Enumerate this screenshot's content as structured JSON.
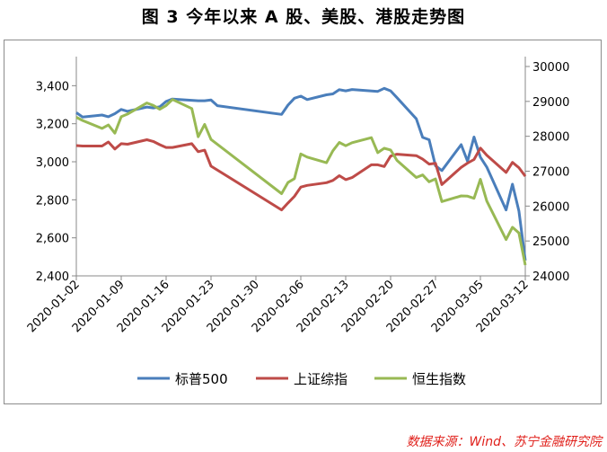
{
  "title": "图 3 今年以来 A 股、美股、港股走势图",
  "source": "数据来源：Wind、苏宁金融研究院",
  "colors": {
    "sp500": "#4a7ebb",
    "shanghai": "#be4b48",
    "hangseng": "#98b954"
  },
  "chart_data": {
    "type": "line",
    "x_tick_labels": [
      "2020-01-02",
      "2020-01-09",
      "2020-01-16",
      "2020-01-23",
      "2020-01-30",
      "2020-02-06",
      "2020-02-13",
      "2020-02-20",
      "2020-02-27",
      "2020-03-05",
      "2020-03-12"
    ],
    "left_axis": {
      "ylim": [
        2400,
        3500
      ],
      "ticks": [
        "2,400",
        "2,600",
        "2,800",
        "3,000",
        "3,200",
        "3,400"
      ],
      "tick_values": [
        2400,
        2600,
        2800,
        3000,
        3200,
        3400
      ]
    },
    "right_axis": {
      "ylim": [
        24000,
        30000
      ],
      "ticks": [
        "24000",
        "25000",
        "26000",
        "27000",
        "28000",
        "29000",
        "30000"
      ],
      "tick_values": [
        24000,
        25000,
        26000,
        27000,
        28000,
        29000,
        30000
      ]
    },
    "grid": false,
    "legend_position": "bottom",
    "series": [
      {
        "name": "标普500",
        "axis": "left",
        "color_key": "sp500",
        "points": [
          [
            "2020-01-02",
            3258
          ],
          [
            "2020-01-03",
            3235
          ],
          [
            "2020-01-06",
            3246
          ],
          [
            "2020-01-07",
            3237
          ],
          [
            "2020-01-08",
            3253
          ],
          [
            "2020-01-09",
            3275
          ],
          [
            "2020-01-10",
            3265
          ],
          [
            "2020-01-13",
            3288
          ],
          [
            "2020-01-14",
            3283
          ],
          [
            "2020-01-15",
            3289
          ],
          [
            "2020-01-16",
            3317
          ],
          [
            "2020-01-17",
            3330
          ],
          [
            "2020-01-21",
            3321
          ],
          [
            "2020-01-22",
            3321
          ],
          [
            "2020-01-23",
            3325
          ],
          [
            "2020-01-24",
            3295
          ],
          [
            "2020-02-03",
            3249
          ],
          [
            "2020-02-04",
            3298
          ],
          [
            "2020-02-05",
            3334
          ],
          [
            "2020-02-06",
            3345
          ],
          [
            "2020-02-07",
            3327
          ],
          [
            "2020-02-10",
            3352
          ],
          [
            "2020-02-11",
            3357
          ],
          [
            "2020-02-12",
            3379
          ],
          [
            "2020-02-13",
            3373
          ],
          [
            "2020-02-14",
            3380
          ],
          [
            "2020-02-18",
            3370
          ],
          [
            "2020-02-19",
            3386
          ],
          [
            "2020-02-20",
            3373
          ],
          [
            "2020-02-21",
            3337
          ],
          [
            "2020-02-24",
            3226
          ],
          [
            "2020-02-25",
            3128
          ],
          [
            "2020-02-26",
            3116
          ],
          [
            "2020-02-27",
            2979
          ],
          [
            "2020-02-28",
            2954
          ],
          [
            "2020-03-02",
            3090
          ],
          [
            "2020-03-03",
            3003
          ],
          [
            "2020-03-04",
            3130
          ],
          [
            "2020-03-05",
            3024
          ],
          [
            "2020-03-06",
            2972
          ],
          [
            "2020-03-09",
            2747
          ],
          [
            "2020-03-10",
            2882
          ],
          [
            "2020-03-11",
            2741
          ],
          [
            "2020-03-12",
            2481
          ]
        ]
      },
      {
        "name": "上证综指",
        "axis": "left",
        "color_key": "shanghai",
        "points": [
          [
            "2020-01-02",
            3085
          ],
          [
            "2020-01-03",
            3083
          ],
          [
            "2020-01-06",
            3083
          ],
          [
            "2020-01-07",
            3104
          ],
          [
            "2020-01-08",
            3067
          ],
          [
            "2020-01-09",
            3095
          ],
          [
            "2020-01-10",
            3092
          ],
          [
            "2020-01-13",
            3116
          ],
          [
            "2020-01-14",
            3107
          ],
          [
            "2020-01-15",
            3090
          ],
          [
            "2020-01-16",
            3075
          ],
          [
            "2020-01-17",
            3075
          ],
          [
            "2020-01-20",
            3095
          ],
          [
            "2020-01-21",
            3053
          ],
          [
            "2020-01-22",
            3061
          ],
          [
            "2020-01-23",
            2977
          ],
          [
            "2020-02-03",
            2747
          ],
          [
            "2020-02-04",
            2783
          ],
          [
            "2020-02-05",
            2818
          ],
          [
            "2020-02-06",
            2867
          ],
          [
            "2020-02-07",
            2876
          ],
          [
            "2020-02-10",
            2890
          ],
          [
            "2020-02-11",
            2902
          ],
          [
            "2020-02-12",
            2927
          ],
          [
            "2020-02-13",
            2906
          ],
          [
            "2020-02-14",
            2917
          ],
          [
            "2020-02-17",
            2984
          ],
          [
            "2020-02-18",
            2984
          ],
          [
            "2020-02-19",
            2975
          ],
          [
            "2020-02-20",
            3030
          ],
          [
            "2020-02-21",
            3040
          ],
          [
            "2020-02-24",
            3032
          ],
          [
            "2020-02-25",
            3014
          ],
          [
            "2020-02-26",
            2988
          ],
          [
            "2020-02-27",
            2992
          ],
          [
            "2020-02-28",
            2880
          ],
          [
            "2020-03-02",
            2971
          ],
          [
            "2020-03-03",
            2993
          ],
          [
            "2020-03-04",
            3012
          ],
          [
            "2020-03-05",
            3072
          ],
          [
            "2020-03-06",
            3034
          ],
          [
            "2020-03-09",
            2944
          ],
          [
            "2020-03-10",
            2997
          ],
          [
            "2020-03-11",
            2969
          ],
          [
            "2020-03-12",
            2924
          ]
        ]
      },
      {
        "name": "恒生指数",
        "axis": "right",
        "color_key": "hangseng",
        "points": [
          [
            "2020-01-02",
            28544
          ],
          [
            "2020-01-03",
            28452
          ],
          [
            "2020-01-06",
            28226
          ],
          [
            "2020-01-07",
            28323
          ],
          [
            "2020-01-08",
            28088
          ],
          [
            "2020-01-09",
            28561
          ],
          [
            "2020-01-10",
            28638
          ],
          [
            "2020-01-13",
            28955
          ],
          [
            "2020-01-14",
            28886
          ],
          [
            "2020-01-15",
            28774
          ],
          [
            "2020-01-16",
            28883
          ],
          [
            "2020-01-17",
            29056
          ],
          [
            "2020-01-20",
            28795
          ],
          [
            "2020-01-21",
            27986
          ],
          [
            "2020-01-22",
            28342
          ],
          [
            "2020-01-23",
            27909
          ],
          [
            "2020-02-03",
            26356
          ],
          [
            "2020-02-04",
            26676
          ],
          [
            "2020-02-05",
            26787
          ],
          [
            "2020-02-06",
            27494
          ],
          [
            "2020-02-07",
            27404
          ],
          [
            "2020-02-10",
            27241
          ],
          [
            "2020-02-11",
            27584
          ],
          [
            "2020-02-12",
            27824
          ],
          [
            "2020-02-13",
            27730
          ],
          [
            "2020-02-14",
            27816
          ],
          [
            "2020-02-17",
            27960
          ],
          [
            "2020-02-18",
            27530
          ],
          [
            "2020-02-19",
            27656
          ],
          [
            "2020-02-20",
            27609
          ],
          [
            "2020-02-21",
            27309
          ],
          [
            "2020-02-24",
            26821
          ],
          [
            "2020-02-25",
            26893
          ],
          [
            "2020-02-26",
            26696
          ],
          [
            "2020-02-27",
            26779
          ],
          [
            "2020-02-28",
            26129
          ],
          [
            "2020-03-02",
            26292
          ],
          [
            "2020-03-03",
            26284
          ],
          [
            "2020-03-04",
            26222
          ],
          [
            "2020-03-05",
            26767
          ],
          [
            "2020-03-06",
            26146
          ],
          [
            "2020-03-09",
            25040
          ],
          [
            "2020-03-10",
            25392
          ],
          [
            "2020-03-11",
            25231
          ],
          [
            "2020-03-12",
            24309
          ]
        ]
      }
    ]
  }
}
